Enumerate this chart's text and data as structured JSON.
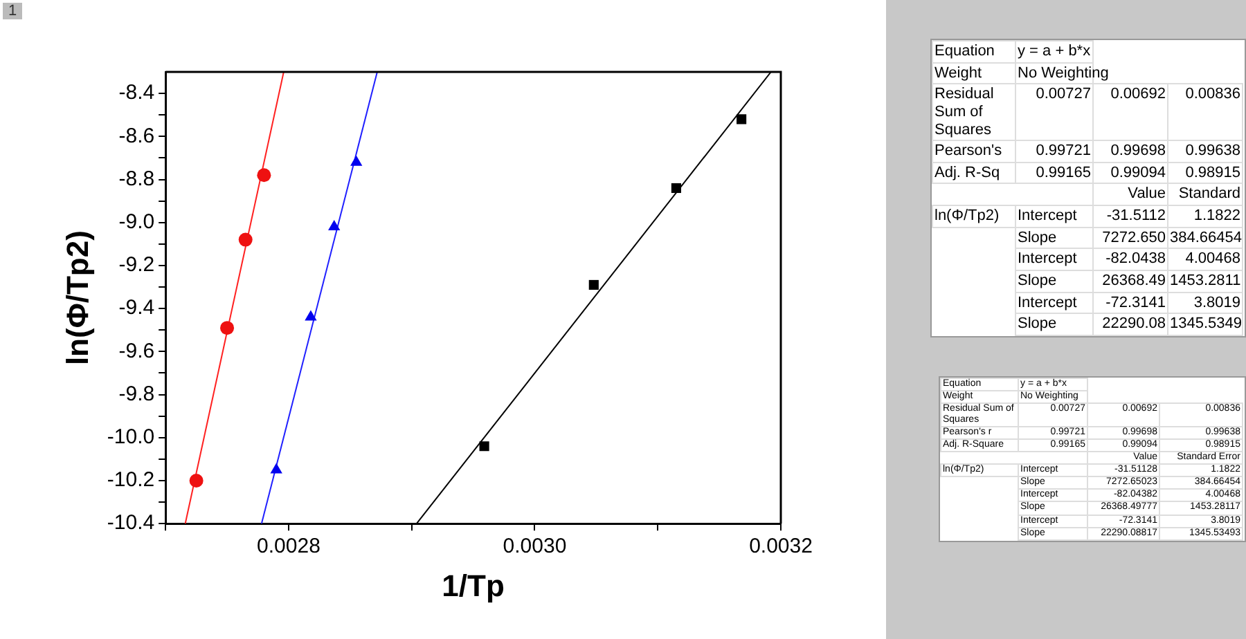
{
  "chart_data": [
    {
      "type": "scatter",
      "xlabel": "1/Tp",
      "ylabel": "ln(Φ/Tp2)",
      "annotations": [
        "1"
      ],
      "xlim": [
        0.0027,
        0.0032
      ],
      "ylim": [
        -10.4,
        -8.3
      ],
      "xticks": [
        {
          "value": 0.0027,
          "label": null
        },
        0.0028,
        {
          "value": 0.0029,
          "label": null
        },
        {
          "value": 0.003,
          "label": "0.0030"
        },
        {
          "value": 0.0031,
          "label": null
        },
        0.0032
      ],
      "yticks": [
        {
          "value": -10.4,
          "label": "-10.4"
        },
        {
          "value": -10.3,
          "label": null
        },
        {
          "value": -10.2,
          "label": "-10.2"
        },
        {
          "value": -10.1,
          "label": null
        },
        {
          "value": -10.0,
          "label": "-10.0"
        },
        {
          "value": -9.9,
          "label": null
        },
        {
          "value": -9.8,
          "label": "-9.8"
        },
        {
          "value": -9.7,
          "label": null
        },
        {
          "value": -9.6,
          "label": "-9.6"
        },
        {
          "value": -9.5,
          "label": null
        },
        {
          "value": -9.4,
          "label": "-9.4"
        },
        {
          "value": -9.3,
          "label": null
        },
        {
          "value": -9.2,
          "label": "-9.2"
        },
        {
          "value": -9.1,
          "label": null
        },
        {
          "value": -9.0,
          "label": "-9.0"
        },
        {
          "value": -8.9,
          "label": null
        },
        {
          "value": -8.8,
          "label": "-8.8"
        },
        {
          "value": -8.7,
          "label": null
        },
        {
          "value": -8.6,
          "label": "-8.6"
        },
        {
          "value": -8.5,
          "label": null
        },
        {
          "value": -8.4,
          "label": "-8.4"
        }
      ],
      "grid": false,
      "legend": false,
      "series": [
        {
          "type": "scatter",
          "color": "#ee1111",
          "marker": "circle",
          "x": [
            0.002725,
            0.00275,
            0.002765,
            0.00278
          ],
          "values": [
            -10.2,
            -9.49,
            -9.08,
            -8.78
          ]
        },
        {
          "type": "scatter",
          "color": "#0000ee",
          "marker": "triangle",
          "x": [
            0.00279,
            0.002818,
            0.002837,
            0.002855
          ],
          "values": [
            -10.15,
            -9.44,
            -9.02,
            -8.72
          ]
        },
        {
          "type": "scatter",
          "color": "#000000",
          "marker": "square",
          "x": [
            0.002959,
            0.003048,
            0.003115,
            0.003168
          ],
          "values": [
            -10.04,
            -9.29,
            -8.84,
            -8.52
          ]
        },
        {
          "type": "line",
          "color": "#ff2020",
          "marker": "none",
          "x": [
            0.002716,
            0.002796
          ],
          "values": [
            -10.4,
            -8.3
          ]
        },
        {
          "type": "line",
          "color": "#2020ff",
          "marker": "none",
          "x": [
            0.002778,
            0.002872
          ],
          "values": [
            -10.4,
            -8.3
          ]
        },
        {
          "type": "line",
          "color": "#000000",
          "marker": "none",
          "x": [
            0.002904,
            0.003192
          ],
          "values": [
            -10.4,
            -8.3
          ]
        }
      ]
    },
    {
      "type": "other",
      "cell_labels": [
        [
          "Equation",
          "y = a + b*x",
          null,
          null
        ],
        [
          "Weight",
          "No Weighting",
          null,
          null
        ],
        [
          "Residual Sum of Squares",
          "0.00727",
          "0.00692",
          "0.00836"
        ],
        [
          "Pearson's",
          "0.99721",
          "0.99698",
          "0.99638"
        ],
        [
          "Adj. R-Sq",
          "0.99165",
          "0.99094",
          "0.98915"
        ],
        [
          null,
          null,
          "Value",
          "Standard"
        ],
        [
          "ln(Φ/Tp2)",
          "Intercept",
          "-31.5112",
          "1.1822"
        ],
        [
          null,
          "Slope",
          "7272.650",
          "384.66454"
        ],
        [
          null,
          "Intercept",
          "-82.0438",
          "4.00468"
        ],
        [
          null,
          "Slope",
          "26368.49",
          "1453.2811"
        ],
        [
          null,
          "Intercept",
          "-72.3141",
          "3.8019"
        ],
        [
          null,
          "Slope",
          "22290.08",
          "1345.5349"
        ]
      ]
    },
    {
      "type": "other",
      "cell_labels": [
        [
          "Equation",
          "y = a + b*x",
          null,
          null
        ],
        [
          "Weight",
          "No Weighting",
          null,
          null
        ],
        [
          "Residual Sum of Squares",
          "0.00727",
          "0.00692",
          "0.00836"
        ],
        [
          "Pearson's r",
          "0.99721",
          "0.99698",
          "0.99638"
        ],
        [
          "Adj. R-Square",
          "0.99165",
          "0.99094",
          "0.98915"
        ],
        [
          null,
          null,
          "Value",
          "Standard Error"
        ],
        [
          "ln(Φ/Tp2)",
          "Intercept",
          "-31.51128",
          "1.1822"
        ],
        [
          null,
          "Slope",
          "7272.65023",
          "384.66454"
        ],
        [
          null,
          "Intercept",
          "-82.04382",
          "4.00468"
        ],
        [
          null,
          "Slope",
          "26368.49777",
          "1453.28117"
        ],
        [
          null,
          "Intercept",
          "-72.3141",
          "3.8019"
        ],
        [
          null,
          "Slope",
          "22290.08817",
          "1345.53493"
        ]
      ]
    }
  ]
}
